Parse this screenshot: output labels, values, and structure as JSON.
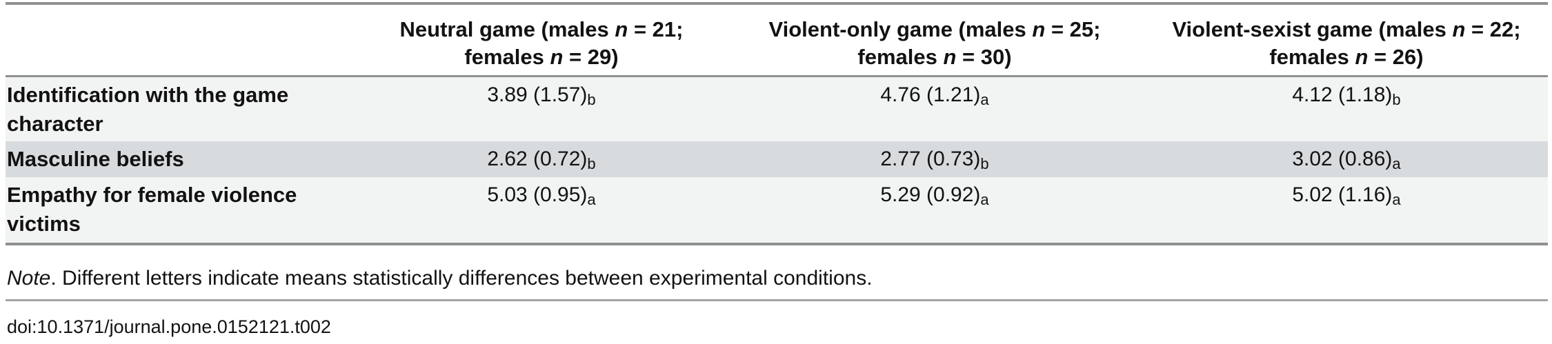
{
  "table": {
    "header": {
      "row_label_column": "",
      "columns": [
        {
          "line1": "Neutral game (males n = 21;",
          "line2": "females n = 29)"
        },
        {
          "line1": "Violent-only game (males n = 25;",
          "line2": "females n = 30)"
        },
        {
          "line1": "Violent-sexist game (males n = 22;",
          "line2": "females n = 26)"
        }
      ]
    },
    "rows": [
      {
        "label": "Identification with the game character",
        "cells": [
          {
            "value": "3.89 (1.57)",
            "sub": "b"
          },
          {
            "value": "4.76 (1.21)",
            "sub": "a"
          },
          {
            "value": "4.12 (1.18)",
            "sub": "b"
          }
        ]
      },
      {
        "label": "Masculine beliefs",
        "cells": [
          {
            "value": "2.62 (0.72)",
            "sub": "b"
          },
          {
            "value": "2.77 (0.73)",
            "sub": "b"
          },
          {
            "value": "3.02 (0.86)",
            "sub": "a"
          }
        ]
      },
      {
        "label": "Empathy for female violence victims",
        "cells": [
          {
            "value": "5.03 (0.95)",
            "sub": "a"
          },
          {
            "value": "5.29 (0.92)",
            "sub": "a"
          },
          {
            "value": "5.02 (1.16)",
            "sub": "a"
          }
        ]
      }
    ]
  },
  "note": {
    "lead_italic": "Note",
    "text": ". Different letters indicate means statistically differences between experimental conditions."
  },
  "doi": "doi:10.1371/journal.pone.0152121.t002",
  "colors": {
    "row_light": "#f2f3f3",
    "row_dark": "#d8dbde",
    "rule_dark": "#8f9091",
    "rule_light": "#a2a3a4"
  }
}
